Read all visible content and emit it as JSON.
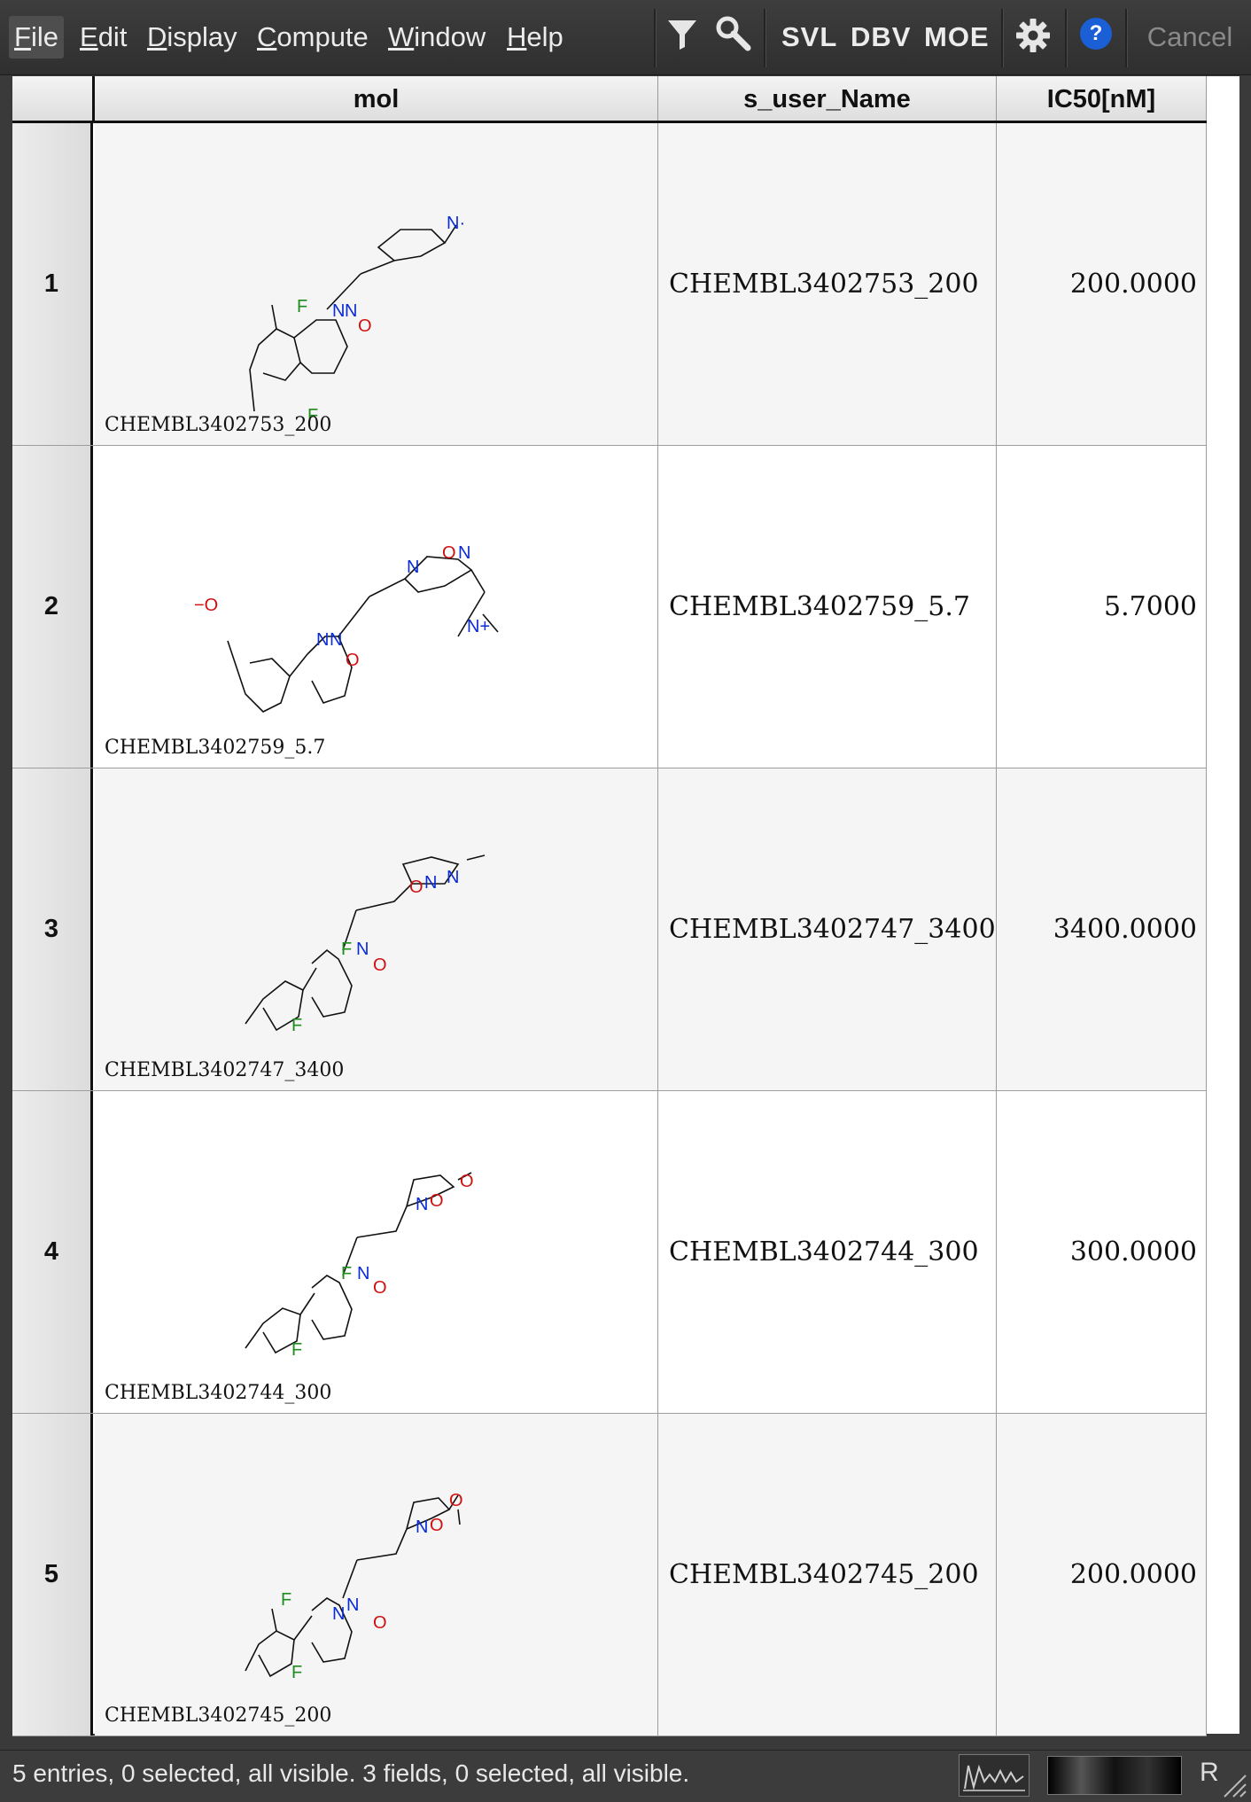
{
  "menubar": {
    "menus": [
      {
        "label": "File",
        "underline": "F",
        "rest": "ile"
      },
      {
        "label": "Edit",
        "underline": "E",
        "rest": "dit"
      },
      {
        "label": "Display",
        "underline": "D",
        "rest": "isplay"
      },
      {
        "label": "Compute",
        "underline": "C",
        "rest": "ompute"
      },
      {
        "label": "Window",
        "underline": "W",
        "rest": "indow"
      },
      {
        "label": "Help",
        "underline": "H",
        "rest": "elp"
      }
    ],
    "toolbar": {
      "svl": "SVL",
      "dbv": "DBV",
      "moe": "MOE",
      "help_glyph": "?",
      "cancel": "Cancel",
      "icons": [
        "filter-icon",
        "search-icon",
        "gear-icon",
        "help-icon"
      ]
    }
  },
  "table": {
    "columns": [
      "mol",
      "s_user_Name",
      "IC50[nM]"
    ],
    "rows": [
      {
        "num": "1",
        "caption": "CHEMBL3402753_200",
        "name": "CHEMBL3402753_200",
        "ic50": "200.0000"
      },
      {
        "num": "2",
        "caption": "CHEMBL3402759_5.7",
        "name": "CHEMBL3402759_5.7",
        "ic50": "5.7000"
      },
      {
        "num": "3",
        "caption": "CHEMBL3402747_3400",
        "name": "CHEMBL3402747_3400",
        "ic50": "3400.0000"
      },
      {
        "num": "4",
        "caption": "CHEMBL3402744_300",
        "name": "CHEMBL3402744_300",
        "ic50": "300.0000"
      },
      {
        "num": "5",
        "caption": "CHEMBL3402745_200",
        "name": "CHEMBL3402745_200",
        "ic50": "200.0000"
      }
    ]
  },
  "statusbar": {
    "text": "5 entries, 0 selected, all visible. 3 fields, 0 selected, all visible.",
    "r_label": "R"
  },
  "colors": {
    "atom_N": "#0a2bd8",
    "atom_O": "#d01010",
    "atom_F": "#1e8c1e",
    "help_blue": "#1a5fd6"
  },
  "atoms": {
    "F": "F",
    "N": "N",
    "O": "O",
    "N_plus": "N+",
    "O_minus": "−O",
    "N_radical": "N·"
  }
}
